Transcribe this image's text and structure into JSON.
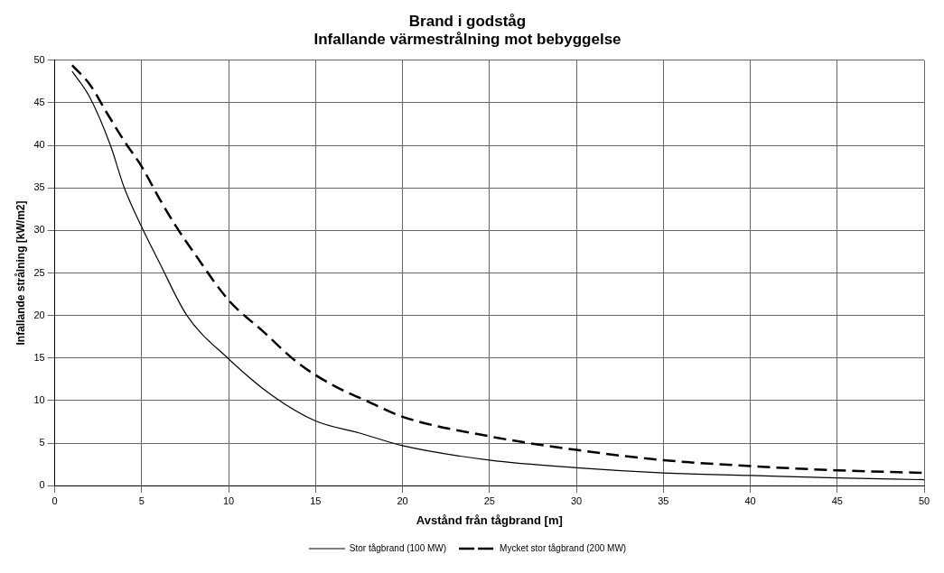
{
  "chart_data": {
    "type": "line",
    "title": "Brand i godståg",
    "subtitle": "Infallande värmestrålning mot bebyggelse",
    "xlabel": "Avstånd från tågbrand [m]",
    "ylabel": "Infallande strålning [kW/m2]",
    "xlim": [
      0,
      50
    ],
    "xticks": [
      0,
      5,
      10,
      15,
      20,
      25,
      30,
      35,
      40,
      45,
      50
    ],
    "ylim": [
      0,
      50
    ],
    "yticks": [
      0,
      5,
      10,
      15,
      20,
      25,
      30,
      35,
      40,
      45,
      50
    ],
    "grid": true,
    "legend": "bottom",
    "marker": "none",
    "series": [
      {
        "name": "Stor tågbrand (100 MW)",
        "color": "#000000",
        "line_style": "solid",
        "x": [
          1,
          2,
          3.2,
          4,
          5,
          6,
          7.6,
          10,
          12.5,
          15,
          17.5,
          20,
          25,
          30,
          35,
          40,
          45,
          50
        ],
        "values": [
          48.7,
          45.7,
          40,
          35,
          30.4,
          26.3,
          20,
          14.9,
          10.6,
          7.6,
          6.2,
          4.7,
          3.0,
          2.1,
          1.5,
          1.2,
          0.9,
          0.7
        ]
      },
      {
        "name": "Mycket stor tågbrand (200 MW)",
        "color": "#000000",
        "line_style": "dashed",
        "x": [
          1,
          2,
          3,
          4,
          5,
          6,
          7,
          8,
          10,
          12,
          14,
          16,
          18,
          20,
          25,
          30,
          35,
          40,
          45,
          50
        ],
        "values": [
          49.4,
          47.2,
          43.8,
          40.5,
          37.5,
          33.8,
          30.4,
          27.4,
          21.8,
          18.1,
          14.4,
          11.8,
          9.9,
          8.1,
          5.8,
          4.2,
          3.0,
          2.3,
          1.8,
          1.5
        ]
      }
    ]
  }
}
